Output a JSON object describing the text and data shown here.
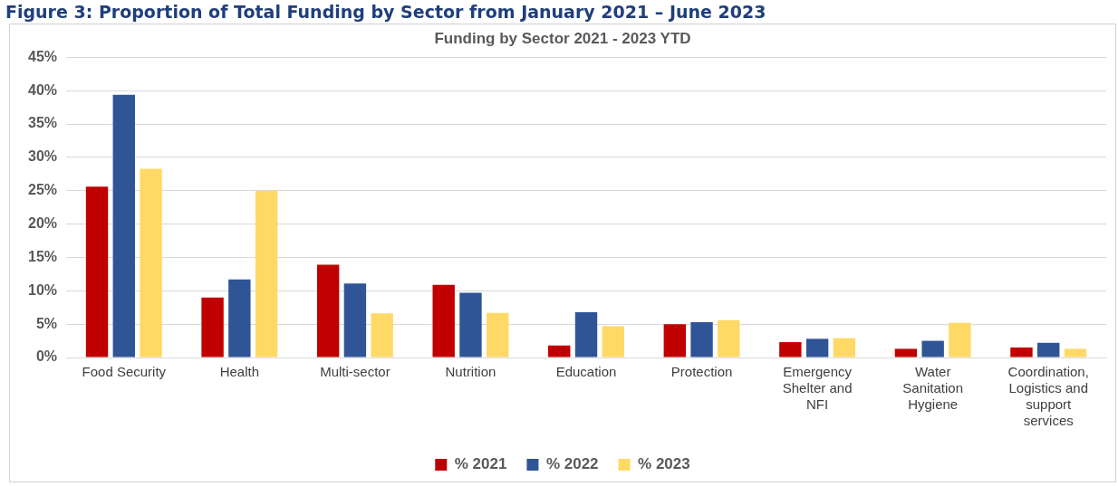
{
  "chart_data": {
    "type": "bar",
    "title": "Funding by Sector 2021 - 2023 YTD",
    "annotations": [
      "Figure 3: Proportion of Total Funding by Sector from January 2021 – June 2023"
    ],
    "categories": [
      "Food Security",
      "Health",
      "Multi-sector",
      "Nutrition",
      "Education",
      "Protection",
      "Emergency Shelter and NFI",
      "Water Sanitation Hygiene",
      "Coordination, Logistics and support services"
    ],
    "series": [
      {
        "name": "% 2021",
        "color": "#c00000",
        "values": [
          25.6,
          9.0,
          13.9,
          10.9,
          1.8,
          5.0,
          2.3,
          1.3,
          1.5
        ]
      },
      {
        "name": "% 2022",
        "color": "#2f5597",
        "values": [
          39.4,
          11.7,
          11.1,
          9.7,
          6.8,
          5.3,
          2.8,
          2.5,
          2.2
        ]
      },
      {
        "name": "% 2023",
        "color": "#ffd966",
        "values": [
          28.3,
          25.0,
          6.6,
          6.7,
          4.7,
          5.6,
          2.9,
          5.2,
          1.3
        ]
      }
    ],
    "ylim": [
      0,
      45
    ],
    "yticks": [
      {
        "value": 0,
        "label": "0%"
      },
      {
        "value": 5,
        "label": "5%"
      },
      {
        "value": 10,
        "label": "10%"
      },
      {
        "value": 15,
        "label": "15%"
      },
      {
        "value": 20,
        "label": "20%"
      },
      {
        "value": 25,
        "label": "25%"
      },
      {
        "value": 30,
        "label": "30%"
      },
      {
        "value": 35,
        "label": "35%"
      },
      {
        "value": 40,
        "label": "40%"
      },
      {
        "value": 45,
        "label": "45%"
      }
    ],
    "grid": "y",
    "legend": "bottom"
  }
}
